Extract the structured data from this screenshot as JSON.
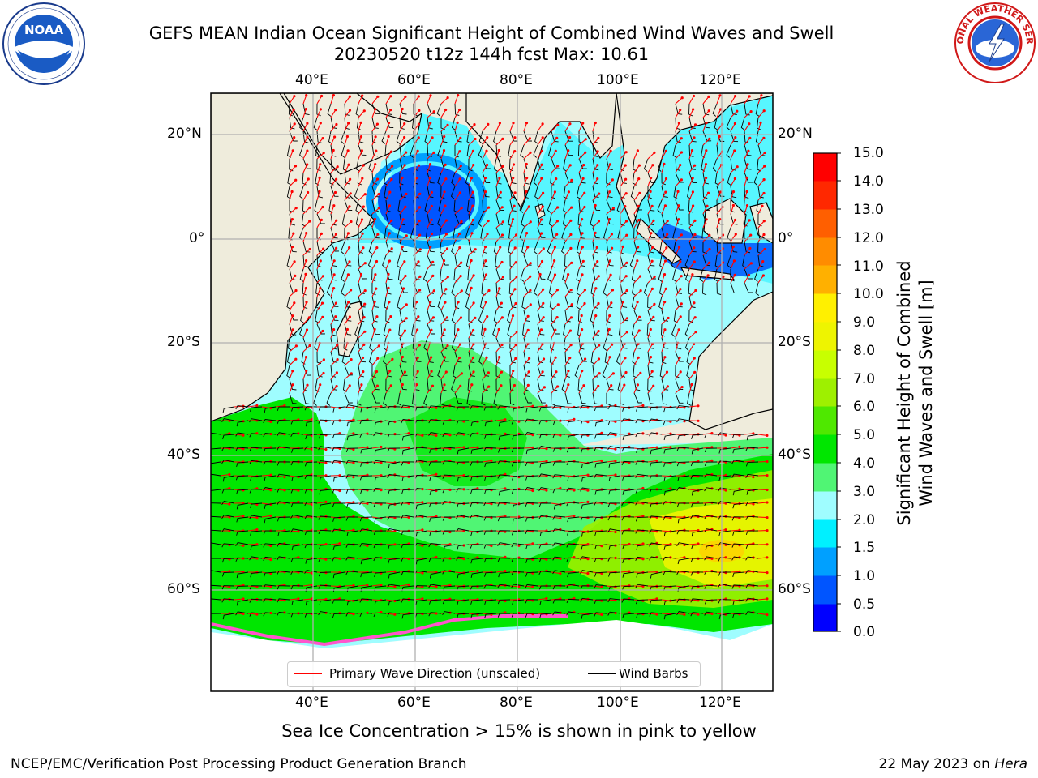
{
  "title": {
    "line1": "GEFS MEAN Indian Ocean Significant Height of Combined Wind Waves and Swell",
    "line2": "20230520 t12z 144h fcst   Max: 10.61"
  },
  "map": {
    "lon_labels": [
      "40°E",
      "60°E",
      "80°E",
      "100°E",
      "120°E"
    ],
    "lat_labels": [
      "20°N",
      "0°",
      "20°S",
      "40°S",
      "60°S"
    ],
    "extent": {
      "lon": [
        20,
        130
      ],
      "lat": [
        -73,
        28
      ]
    }
  },
  "colorbar": {
    "title_line1": "Significant Height of Combined",
    "title_line2": "Wind Waves and Swell [m]",
    "tick_labels": [
      "15.0",
      "14.0",
      "13.0",
      "12.0",
      "11.0",
      "10.0",
      "9.0",
      "8.0",
      "7.0",
      "6.0",
      "5.0",
      "4.0",
      "3.0",
      "2.0",
      "1.5",
      "1.0",
      "0.5",
      "0.0"
    ],
    "colors": [
      "#0000ff",
      "#0055ff",
      "#00a0ff",
      "#00f0ff",
      "#4ff5ff",
      "#9ffdff",
      "#50f574",
      "#00e600",
      "#4fe800",
      "#9ef000",
      "#c8ff00",
      "#eef400",
      "#fff000",
      "#ffd000",
      "#ffb000",
      "#ff8c00",
      "#ff5f00",
      "#ff2800",
      "#ff0000"
    ]
  },
  "legend": {
    "wave_label": "Primary Wave Direction (unscaled)",
    "barb_label": "Wind Barbs",
    "wave_color": "#ff0000",
    "barb_color": "#000000"
  },
  "ice_note": "Sea Ice Concentration > 15% is shown in pink to yellow",
  "footer": {
    "left": "NCEP/EMC/Verification Post Processing Product Generation Branch",
    "right_date": "22 May 2023 on",
    "right_host": "Hera"
  },
  "logos": {
    "left": "NOAA",
    "right": "NATIONAL WEATHER SERVICE"
  }
}
